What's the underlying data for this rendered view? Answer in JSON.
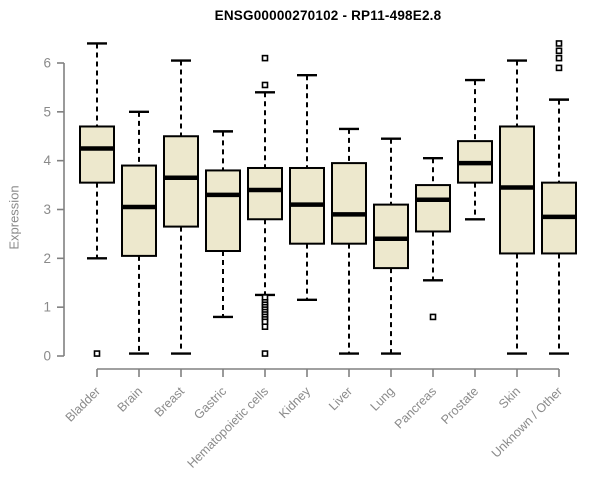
{
  "chart_data": {
    "type": "box",
    "title": "ENSG00000270102 - RP11-498E2.8",
    "ylabel": "Expression",
    "xlabel": "",
    "ylim": [
      0,
      6.5
    ],
    "yticks": [
      0,
      1,
      2,
      3,
      4,
      5,
      6
    ],
    "grid": false,
    "legend": "none",
    "whisker_line_style": "dashed",
    "outlier_marker": "open-square",
    "categories": [
      "Bladder",
      "Brain",
      "Breast",
      "Gastric",
      "Hematopoietic cells",
      "Kidney",
      "Liver",
      "Lung",
      "Pancreas",
      "Prostate",
      "Skin",
      "Unknown / Other"
    ],
    "boxes": [
      {
        "category": "Bladder",
        "whisker_low": 2.0,
        "q1": 3.55,
        "median": 4.25,
        "q3": 4.7,
        "whisker_high": 6.4,
        "outliers": [
          0.05
        ]
      },
      {
        "category": "Brain",
        "whisker_low": 0.05,
        "q1": 2.05,
        "median": 3.05,
        "q3": 3.9,
        "whisker_high": 5.0,
        "outliers": []
      },
      {
        "category": "Breast",
        "whisker_low": 0.05,
        "q1": 2.65,
        "median": 3.65,
        "q3": 4.5,
        "whisker_high": 6.05,
        "outliers": []
      },
      {
        "category": "Gastric",
        "whisker_low": 0.8,
        "q1": 2.15,
        "median": 3.3,
        "q3": 3.8,
        "whisker_high": 4.6,
        "outliers": []
      },
      {
        "category": "Hematopoietic cells",
        "whisker_low": 1.25,
        "q1": 2.8,
        "median": 3.4,
        "q3": 3.85,
        "whisker_high": 5.4,
        "outliers": [
          6.1,
          5.55,
          1.2,
          1.1,
          1.05,
          1.0,
          0.95,
          0.9,
          0.85,
          0.8,
          0.75,
          0.7,
          0.6,
          0.05
        ]
      },
      {
        "category": "Kidney",
        "whisker_low": 1.15,
        "q1": 2.3,
        "median": 3.1,
        "q3": 3.85,
        "whisker_high": 5.75,
        "outliers": []
      },
      {
        "category": "Liver",
        "whisker_low": 0.05,
        "q1": 2.3,
        "median": 2.9,
        "q3": 3.95,
        "whisker_high": 4.65,
        "outliers": []
      },
      {
        "category": "Lung",
        "whisker_low": 0.05,
        "q1": 1.8,
        "median": 2.4,
        "q3": 3.1,
        "whisker_high": 4.45,
        "outliers": []
      },
      {
        "category": "Pancreas",
        "whisker_low": 1.55,
        "q1": 2.55,
        "median": 3.2,
        "q3": 3.5,
        "whisker_high": 4.05,
        "outliers": [
          0.8
        ]
      },
      {
        "category": "Prostate",
        "whisker_low": 2.8,
        "q1": 3.55,
        "median": 3.95,
        "q3": 4.4,
        "whisker_high": 5.65,
        "outliers": []
      },
      {
        "category": "Skin",
        "whisker_low": 0.05,
        "q1": 2.1,
        "median": 3.45,
        "q3": 4.7,
        "whisker_high": 6.05,
        "outliers": []
      },
      {
        "category": "Unknown / Other",
        "whisker_low": 0.05,
        "q1": 2.1,
        "median": 2.85,
        "q3": 3.55,
        "whisker_high": 5.25,
        "outliers": [
          6.4,
          6.25,
          6.1,
          5.9
        ]
      }
    ],
    "colors": {
      "background": "#ffffff",
      "box_fill": "#ede8cd",
      "box_border": "#000000",
      "median": "#000000",
      "whisker": "#000000",
      "axis": "#808080",
      "tick_label": "#8a8a8a",
      "title": "#000000",
      "outlier_fill": "#ffffff"
    }
  }
}
